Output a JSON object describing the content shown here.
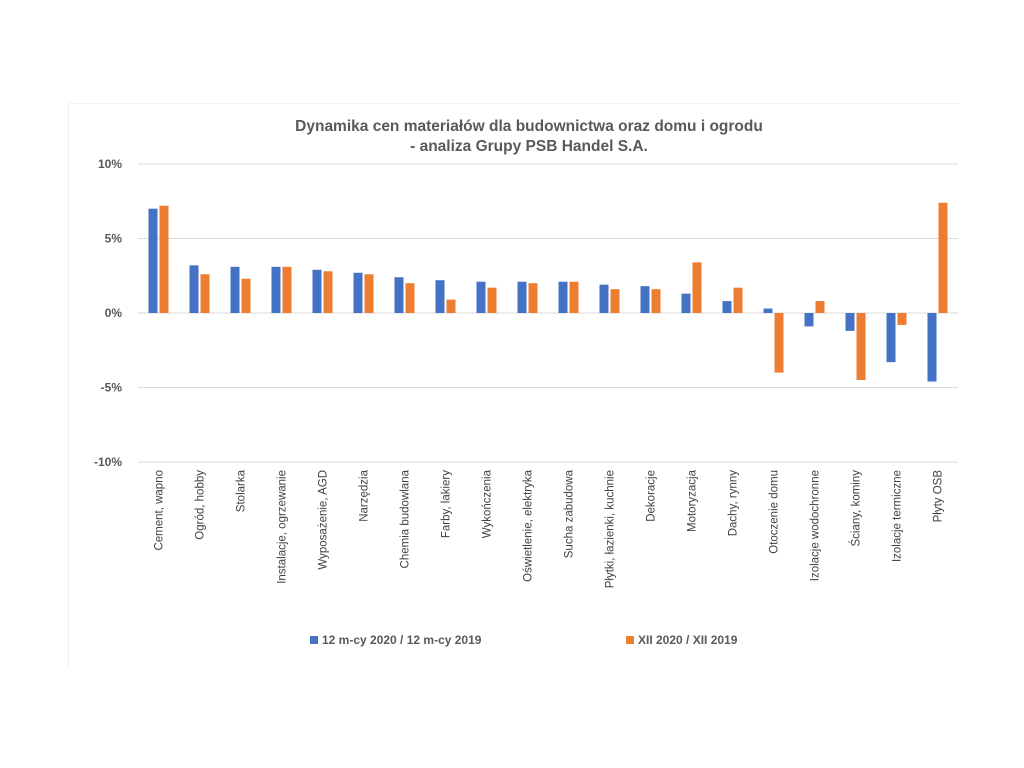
{
  "chart_data": {
    "type": "bar",
    "title_lines": [
      "Dynamika cen materiałów dla budownictwa oraz domu i ogrodu",
      "- analiza Grupy PSB Handel S.A."
    ],
    "xlabel": "",
    "ylabel": "",
    "ylim": [
      -10,
      10
    ],
    "yticks": [
      10,
      5,
      0,
      -5,
      -10
    ],
    "ytick_labels": [
      "10%",
      "5%",
      "0%",
      "-5%",
      "-10%"
    ],
    "grid": true,
    "legend_position": "bottom",
    "categories": [
      "Cement, wapno",
      "Ogród, hobby",
      "Stolarka",
      "Instalacje, ogrzewanie",
      "Wyposażenie, AGD",
      "Narzędzia",
      "Chemia budowlana",
      "Farby, lakiery",
      "Wykończenia",
      "Oświetlenie, elektryka",
      "Sucha zabudowa",
      "Płytki, łazienki, kuchnie",
      "Dekoracje",
      "Motoryzacja",
      "Dachy, rynny",
      "Otoczenie domu",
      "Izolacje wodochronne",
      "Ściany, kominy",
      "Izolacje termiczne",
      "Płyty OSB"
    ],
    "series": [
      {
        "name": "12 m-cy 2020 / 12 m-cy 2019",
        "color": "#4472C4",
        "values": [
          7.0,
          3.2,
          3.1,
          3.1,
          2.9,
          2.7,
          2.4,
          2.2,
          2.1,
          2.1,
          2.1,
          1.9,
          1.8,
          1.3,
          0.8,
          0.3,
          -0.9,
          -1.2,
          -3.3,
          -4.6
        ]
      },
      {
        "name": "XII 2020 / XII 2019",
        "color": "#ED7D31",
        "values": [
          7.2,
          2.6,
          2.3,
          3.1,
          2.8,
          2.6,
          2.0,
          0.9,
          1.7,
          2.0,
          2.1,
          1.6,
          1.6,
          3.4,
          1.7,
          -4.0,
          0.8,
          -4.5,
          -0.8,
          7.4
        ]
      }
    ]
  }
}
